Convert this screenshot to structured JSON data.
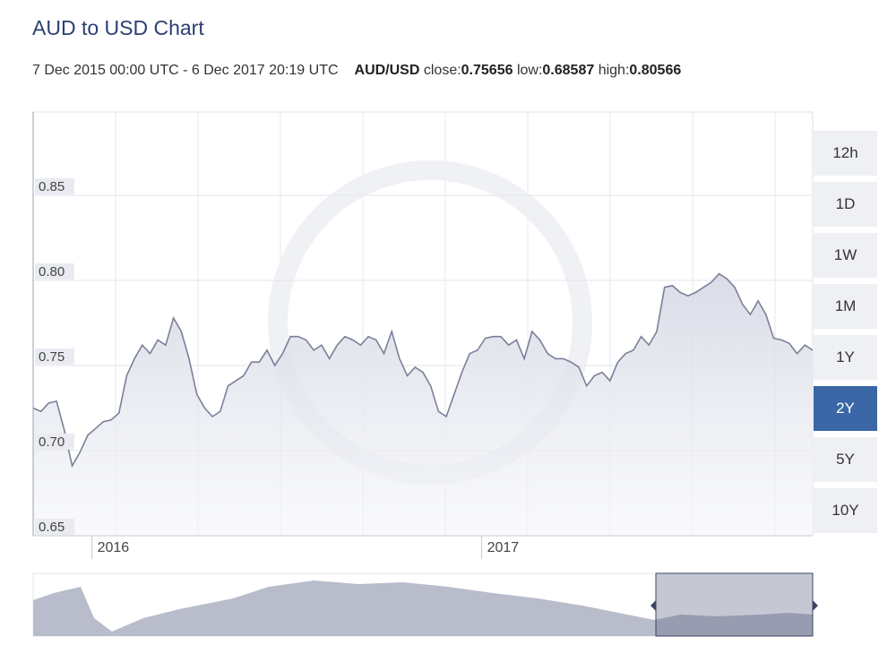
{
  "header": {
    "title": "AUD to USD Chart",
    "range": "7 Dec 2015 00:00 UTC - 6 Dec 2017 20:19 UTC",
    "pair": "AUD/USD",
    "stats": [
      {
        "label": "close:",
        "value": 0.75656
      },
      {
        "label": "low:",
        "value": 0.68587
      },
      {
        "label": "high:",
        "value": 0.80566
      }
    ]
  },
  "range_buttons": [
    "12h",
    "1D",
    "1W",
    "1M",
    "1Y",
    "2Y",
    "5Y",
    "10Y"
  ],
  "selected_range": "2Y",
  "chart_data": {
    "type": "line",
    "color": "#7b8099",
    "categories": [
      null,
      null,
      null,
      null,
      null,
      null,
      null,
      null,
      "2016",
      null,
      null,
      null,
      null,
      null,
      null,
      null,
      null,
      null,
      null,
      null,
      null,
      null,
      null,
      null,
      null,
      null,
      null,
      null,
      null,
      null,
      null,
      null,
      null,
      null,
      null,
      null,
      null,
      null,
      null,
      null,
      null,
      null,
      null,
      null,
      null,
      null,
      null,
      null,
      null,
      null,
      null,
      null,
      null,
      null,
      null,
      null,
      null,
      null,
      "2017",
      null,
      null,
      null,
      null,
      null,
      null,
      null,
      null,
      null,
      null,
      null,
      null,
      null,
      null,
      null,
      null,
      null,
      null,
      null,
      null,
      null,
      null,
      null,
      null,
      null,
      null,
      null,
      null,
      null,
      null,
      null,
      null,
      null,
      null,
      null,
      null,
      null,
      null,
      null,
      null,
      null,
      null
    ],
    "values": [
      0.725,
      0.723,
      0.728,
      0.729,
      0.712,
      0.691,
      0.699,
      0.709,
      0.713,
      0.717,
      0.718,
      0.722,
      0.744,
      0.754,
      0.762,
      0.757,
      0.765,
      0.762,
      0.778,
      0.77,
      0.754,
      0.733,
      0.725,
      0.72,
      0.723,
      0.738,
      0.741,
      0.744,
      0.752,
      0.752,
      0.759,
      0.75,
      0.757,
      0.767,
      0.767,
      0.765,
      0.759,
      0.762,
      0.754,
      0.762,
      0.767,
      0.765,
      0.762,
      0.767,
      0.765,
      0.757,
      0.77,
      0.754,
      0.744,
      0.749,
      0.746,
      0.738,
      0.723,
      0.72,
      0.733,
      0.746,
      0.757,
      0.759,
      0.766,
      0.767,
      0.767,
      0.762,
      0.765,
      0.754,
      0.77,
      0.765,
      0.757,
      0.754,
      0.754,
      0.752,
      0.749,
      0.738,
      0.744,
      0.746,
      0.741,
      0.752,
      0.757,
      0.759,
      0.767,
      0.762,
      0.77,
      0.796,
      0.797,
      0.793,
      0.791,
      0.793,
      0.796,
      0.799,
      0.804,
      0.801,
      0.796,
      0.786,
      0.78,
      0.788,
      0.78,
      0.766,
      0.765,
      0.763,
      0.757,
      0.762,
      0.759
    ],
    "ylim": [
      0.65,
      0.899
    ],
    "yticks": [
      0.65,
      {
        "value": 0.7,
        "label": "0.70"
      },
      0.75,
      {
        "value": 0.8,
        "label": "0.80"
      },
      0.85
    ],
    "grid": true
  }
}
